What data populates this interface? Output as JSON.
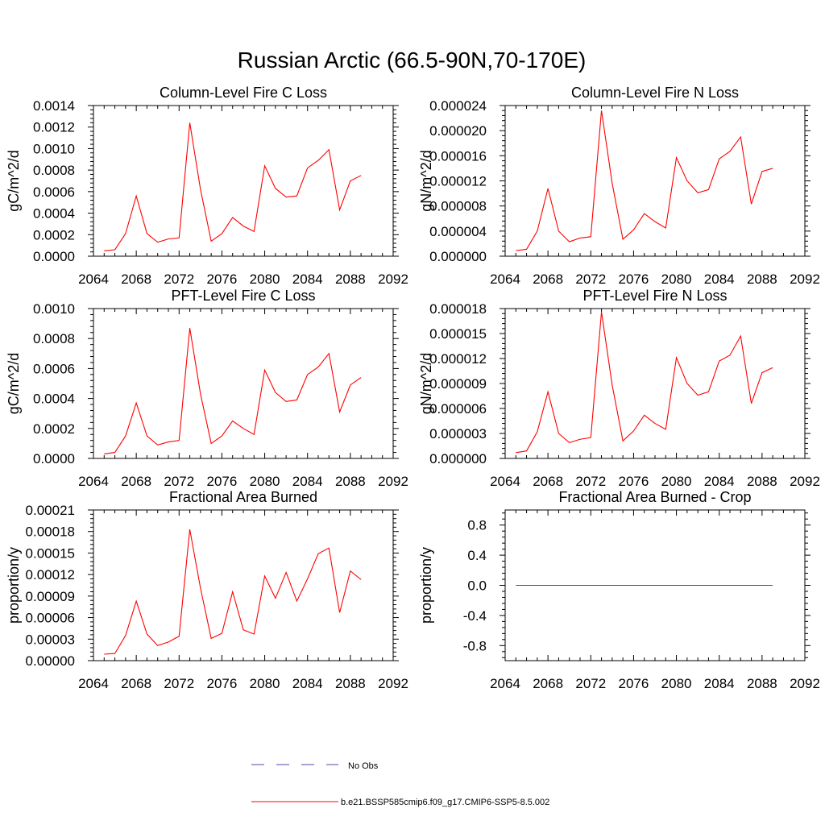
{
  "figure_title": "Russian Arctic (66.5-90N,70-170E)",
  "legend": {
    "entries": [
      {
        "label": "No Obs",
        "color": "#4a4aa8",
        "dash": "dashed"
      },
      {
        "label": "b.e21.BSSP585cmip6.f09_g17.CMIP6-SSP5-8.5.002",
        "color": "#ff0000",
        "dash": "solid"
      }
    ]
  },
  "chart_data": [
    {
      "type": "line",
      "title": "Column-Level Fire C Loss",
      "ylabel": "gC/m^2/d",
      "xlim": [
        2064,
        2092
      ],
      "ylim": [
        0,
        0.0014
      ],
      "xticks": [
        "2064",
        "2068",
        "2072",
        "2076",
        "2080",
        "2084",
        "2088",
        "2092"
      ],
      "yticks": [
        "0.0000",
        "0.0002",
        "0.0004",
        "0.0006",
        "0.0008",
        "0.0010",
        "0.0012",
        "0.0014"
      ],
      "series": [
        {
          "color": "#ff0000",
          "x": [
            2065,
            2066,
            2067,
            2068,
            2069,
            2070,
            2071,
            2072,
            2073,
            2074,
            2075,
            2076,
            2077,
            2078,
            2079,
            2080,
            2081,
            2082,
            2083,
            2084,
            2085,
            2086,
            2087,
            2088,
            2089
          ],
          "values": [
            5e-05,
            6e-05,
            0.00021,
            0.00056,
            0.00021,
            0.00013,
            0.00016,
            0.00017,
            0.00124,
            0.00062,
            0.00014,
            0.00021,
            0.00036,
            0.00028,
            0.00023,
            0.00084,
            0.00063,
            0.00055,
            0.00056,
            0.00082,
            0.00089,
            0.00099,
            0.00043,
            0.0007,
            0.00075
          ]
        }
      ]
    },
    {
      "type": "line",
      "title": "Column-Level Fire N Loss",
      "ylabel": "gN/m^2/d",
      "xlim": [
        2064,
        2092
      ],
      "ylim": [
        0,
        2.4e-05
      ],
      "xticks": [
        "2064",
        "2068",
        "2072",
        "2076",
        "2080",
        "2084",
        "2088",
        "2092"
      ],
      "yticks": [
        "0.000000",
        "0.000004",
        "0.000008",
        "0.000012",
        "0.000016",
        "0.000020",
        "0.000024"
      ],
      "series": [
        {
          "color": "#ff0000",
          "x": [
            2065,
            2066,
            2067,
            2068,
            2069,
            2070,
            2071,
            2072,
            2073,
            2074,
            2075,
            2076,
            2077,
            2078,
            2079,
            2080,
            2081,
            2082,
            2083,
            2084,
            2085,
            2086,
            2087,
            2088,
            2089
          ],
          "values": [
            9e-07,
            1.1e-06,
            4e-06,
            1.08e-05,
            4e-06,
            2.3e-06,
            2.9e-06,
            3.1e-06,
            2.32e-05,
            1.16e-05,
            2.7e-06,
            4.2e-06,
            6.8e-06,
            5.5e-06,
            4.5e-06,
            1.57e-05,
            1.2e-05,
            1.01e-05,
            1.06e-05,
            1.55e-05,
            1.67e-05,
            1.9e-05,
            8.3e-06,
            1.35e-05,
            1.4e-05
          ]
        }
      ]
    },
    {
      "type": "line",
      "title": "PFT-Level Fire C Loss",
      "ylabel": "gC/m^2/d",
      "xlim": [
        2064,
        2092
      ],
      "ylim": [
        0,
        0.001
      ],
      "xticks": [
        "2064",
        "2068",
        "2072",
        "2076",
        "2080",
        "2084",
        "2088",
        "2092"
      ],
      "yticks": [
        "0.0000",
        "0.0002",
        "0.0004",
        "0.0006",
        "0.0008",
        "0.0010"
      ],
      "series": [
        {
          "color": "#ff0000",
          "x": [
            2065,
            2066,
            2067,
            2068,
            2069,
            2070,
            2071,
            2072,
            2073,
            2074,
            2075,
            2076,
            2077,
            2078,
            2079,
            2080,
            2081,
            2082,
            2083,
            2084,
            2085,
            2086,
            2087,
            2088,
            2089
          ],
          "values": [
            3e-05,
            4e-05,
            0.00015,
            0.00037,
            0.00015,
            9e-05,
            0.00011,
            0.00012,
            0.00087,
            0.00043,
            0.0001,
            0.00015,
            0.00025,
            0.0002,
            0.00016,
            0.00059,
            0.00044,
            0.00038,
            0.00039,
            0.00056,
            0.00061,
            0.0007,
            0.00031,
            0.00049,
            0.00054
          ]
        }
      ]
    },
    {
      "type": "line",
      "title": "PFT-Level Fire N Loss",
      "ylabel": "gN/m^2/d",
      "xlim": [
        2064,
        2092
      ],
      "ylim": [
        0,
        1.8e-05
      ],
      "xticks": [
        "2064",
        "2068",
        "2072",
        "2076",
        "2080",
        "2084",
        "2088",
        "2092"
      ],
      "yticks": [
        "0.000000",
        "0.000003",
        "0.000006",
        "0.000009",
        "0.000012",
        "0.000015",
        "0.000018"
      ],
      "series": [
        {
          "color": "#ff0000",
          "x": [
            2065,
            2066,
            2067,
            2068,
            2069,
            2070,
            2071,
            2072,
            2073,
            2074,
            2075,
            2076,
            2077,
            2078,
            2079,
            2080,
            2081,
            2082,
            2083,
            2084,
            2085,
            2086,
            2087,
            2088,
            2089
          ],
          "values": [
            7e-07,
            9e-07,
            3.2e-06,
            8e-06,
            3e-06,
            1.9e-06,
            2.3e-06,
            2.5e-06,
            1.76e-05,
            8.8e-06,
            2.1e-06,
            3.3e-06,
            5.2e-06,
            4.2e-06,
            3.5e-06,
            1.21e-05,
            9e-06,
            7.6e-06,
            8e-06,
            1.17e-05,
            1.24e-05,
            1.47e-05,
            6.6e-06,
            1.03e-05,
            1.09e-05
          ]
        }
      ]
    },
    {
      "type": "line",
      "title": "Fractional Area Burned",
      "ylabel": "proportion/y",
      "xlim": [
        2064,
        2092
      ],
      "ylim": [
        0,
        0.00021
      ],
      "xticks": [
        "2064",
        "2068",
        "2072",
        "2076",
        "2080",
        "2084",
        "2088",
        "2092"
      ],
      "yticks": [
        "0.00000",
        "0.00003",
        "0.00006",
        "0.00009",
        "0.00012",
        "0.00015",
        "0.00018",
        "0.00021"
      ],
      "series": [
        {
          "color": "#ff0000",
          "x": [
            2065,
            2066,
            2067,
            2068,
            2069,
            2070,
            2071,
            2072,
            2073,
            2074,
            2075,
            2076,
            2077,
            2078,
            2079,
            2080,
            2081,
            2082,
            2083,
            2084,
            2085,
            2086,
            2087,
            2088,
            2089
          ],
          "values": [
            9e-06,
            1e-05,
            3.5e-05,
            8.3e-05,
            3.7e-05,
            2.1e-05,
            2.6e-05,
            3.4e-05,
            0.000183,
            0.000101,
            3.1e-05,
            3.8e-05,
            9.6e-05,
            4.3e-05,
            3.7e-05,
            0.000118,
            8.7e-05,
            0.000123,
            8.3e-05,
            0.000114,
            0.000149,
            0.000157,
            6.7e-05,
            0.000125,
            0.000113
          ]
        }
      ]
    },
    {
      "type": "line",
      "title": "Fractional Area Burned - Crop",
      "ylabel": "proportion/y",
      "xlim": [
        2064,
        2092
      ],
      "ylim": [
        -1,
        1
      ],
      "xticks": [
        "2064",
        "2068",
        "2072",
        "2076",
        "2080",
        "2084",
        "2088",
        "2092"
      ],
      "yticks": [
        "-0.8",
        "-0.4",
        "0.0",
        "0.4",
        "0.8"
      ],
      "series": [
        {
          "color": "#ff0000",
          "x": [
            2065,
            2066,
            2067,
            2068,
            2069,
            2070,
            2071,
            2072,
            2073,
            2074,
            2075,
            2076,
            2077,
            2078,
            2079,
            2080,
            2081,
            2082,
            2083,
            2084,
            2085,
            2086,
            2087,
            2088,
            2089
          ],
          "values": [
            0,
            0,
            0,
            0,
            0,
            0,
            0,
            0,
            0,
            0,
            0,
            0,
            0,
            0,
            0,
            0,
            0,
            0,
            0,
            0,
            0,
            0,
            0,
            0,
            0
          ]
        }
      ]
    }
  ]
}
